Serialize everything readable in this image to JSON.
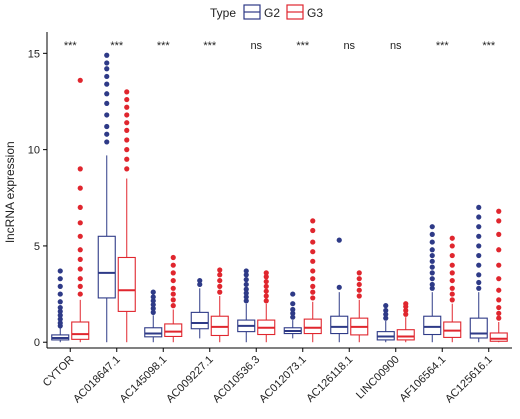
{
  "chart_data": {
    "type": "box",
    "ylabel": "lncRNA expression",
    "xlabel": "",
    "ylim": [
      -0.3,
      15.9
    ],
    "yticks": [
      0,
      5,
      10,
      15
    ],
    "grid": false,
    "legend": {
      "title": "Type",
      "placement": "top",
      "entries": [
        {
          "name": "G2",
          "color": "#2e3a87"
        },
        {
          "name": "G3",
          "color": "#e0262e"
        }
      ]
    },
    "categories": [
      "CYTOR",
      "AC018647.1",
      "AC145098.1",
      "AC009227.1",
      "AC010536.3",
      "AC012073.1",
      "AC126118.1",
      "LINC00900",
      "AF106564.1",
      "AC125616.1"
    ],
    "significance": [
      "***",
      "***",
      "***",
      "***",
      "ns",
      "***",
      "ns",
      "ns",
      "***",
      "***"
    ],
    "series": [
      {
        "name": "G2",
        "color": "#2e3a87",
        "boxes": [
          {
            "min": 0.0,
            "q1": 0.12,
            "median": 0.22,
            "q3": 0.38,
            "max": 0.75,
            "outliers": [
              0.85,
              1.0,
              1.2,
              1.4,
              1.6,
              1.8,
              2.1,
              2.5,
              2.9,
              3.3,
              3.7
            ]
          },
          {
            "min": 0.0,
            "q1": 2.3,
            "median": 3.6,
            "q3": 5.5,
            "max": 9.7,
            "outliers": [
              10.4,
              10.8,
              11.2,
              11.8,
              12.4,
              12.9,
              13.4,
              13.8,
              14.2,
              14.5,
              14.9
            ]
          },
          {
            "min": 0.0,
            "q1": 0.28,
            "median": 0.45,
            "q3": 0.75,
            "max": 1.4,
            "outliers": [
              1.55,
              1.75,
              1.95,
              2.15,
              2.35,
              2.6
            ]
          },
          {
            "min": 0.2,
            "q1": 0.7,
            "median": 1.0,
            "q3": 1.55,
            "max": 2.8,
            "outliers": [
              3.0,
              3.2
            ]
          },
          {
            "min": 0.0,
            "q1": 0.55,
            "median": 0.85,
            "q3": 1.15,
            "max": 2.0,
            "outliers": [
              2.15,
              2.35,
              2.55,
              2.75,
              3.0,
              3.25,
              3.5,
              3.7
            ]
          },
          {
            "min": 0.2,
            "q1": 0.45,
            "median": 0.58,
            "q3": 0.75,
            "max": 1.15,
            "outliers": [
              1.3,
              1.5,
              1.7,
              2.0,
              2.5
            ]
          },
          {
            "min": 0.0,
            "q1": 0.45,
            "median": 0.8,
            "q3": 1.35,
            "max": 2.6,
            "outliers": [
              2.85,
              5.3
            ]
          },
          {
            "min": 0.0,
            "q1": 0.12,
            "median": 0.3,
            "q3": 0.55,
            "max": 1.1,
            "outliers": [
              1.25,
              1.45,
              1.65,
              1.9
            ]
          },
          {
            "min": 0.0,
            "q1": 0.4,
            "median": 0.8,
            "q3": 1.35,
            "max": 2.6,
            "outliers": [
              2.8,
              3.0,
              3.3,
              3.6,
              3.9,
              4.2,
              4.5,
              4.8,
              5.2,
              5.6,
              6.0
            ]
          },
          {
            "min": 0.0,
            "q1": 0.22,
            "median": 0.45,
            "q3": 1.25,
            "max": 2.6,
            "outliers": [
              2.8,
              3.1,
              3.5,
              4.0,
              4.5,
              5.0,
              5.5,
              6.0,
              6.5,
              7.0
            ]
          }
        ]
      },
      {
        "name": "G3",
        "color": "#e0262e",
        "boxes": [
          {
            "min": 0.0,
            "q1": 0.15,
            "median": 0.42,
            "q3": 1.05,
            "max": 2.2,
            "outliers": [
              2.5,
              2.9,
              3.3,
              3.8,
              4.3,
              4.8,
              5.5,
              6.2,
              7.0,
              8.0,
              9.0,
              13.6
            ]
          },
          {
            "min": 0.0,
            "q1": 1.6,
            "median": 2.7,
            "q3": 4.4,
            "max": 8.5,
            "outliers": [
              9.0,
              9.5,
              10.0,
              10.5,
              11.0,
              11.4,
              11.8,
              12.2,
              12.6,
              13.0
            ]
          },
          {
            "min": 0.0,
            "q1": 0.3,
            "median": 0.55,
            "q3": 0.95,
            "max": 1.7,
            "outliers": [
              1.9,
              2.2,
              2.5,
              2.8,
              3.2,
              3.6,
              4.0,
              4.4
            ]
          },
          {
            "min": 0.0,
            "q1": 0.35,
            "median": 0.8,
            "q3": 1.35,
            "max": 2.4,
            "outliers": [
              2.6,
              2.9,
              3.2,
              3.5,
              3.75
            ]
          },
          {
            "min": 0.0,
            "q1": 0.4,
            "median": 0.75,
            "q3": 1.15,
            "max": 2.0,
            "outliers": [
              2.15,
              2.4,
              2.65,
              2.9,
              3.15,
              3.4,
              3.6
            ]
          },
          {
            "min": 0.0,
            "q1": 0.45,
            "median": 0.75,
            "q3": 1.2,
            "max": 2.1,
            "outliers": [
              2.3,
              2.6,
              2.9,
              3.3,
              3.7,
              4.2,
              4.7,
              5.2,
              5.8,
              6.3
            ]
          },
          {
            "min": 0.0,
            "q1": 0.38,
            "median": 0.8,
            "q3": 1.25,
            "max": 2.2,
            "outliers": [
              2.4,
              2.7,
              3.0,
              3.3,
              3.6
            ]
          },
          {
            "min": 0.0,
            "q1": 0.12,
            "median": 0.3,
            "q3": 0.65,
            "max": 1.3,
            "outliers": [
              1.45,
              1.65,
              1.85,
              2.0
            ]
          },
          {
            "min": 0.0,
            "q1": 0.25,
            "median": 0.6,
            "q3": 1.05,
            "max": 2.0,
            "outliers": [
              2.2,
              2.5,
              2.8,
              3.2,
              3.6,
              4.0,
              4.5,
              5.0,
              5.4
            ]
          },
          {
            "min": 0.0,
            "q1": 0.05,
            "median": 0.18,
            "q3": 0.48,
            "max": 1.05,
            "outliers": [
              1.25,
              1.5,
              1.8,
              2.2,
              2.7,
              3.3,
              4.0,
              4.8,
              5.6,
              6.3,
              6.8
            ]
          }
        ]
      }
    ]
  }
}
